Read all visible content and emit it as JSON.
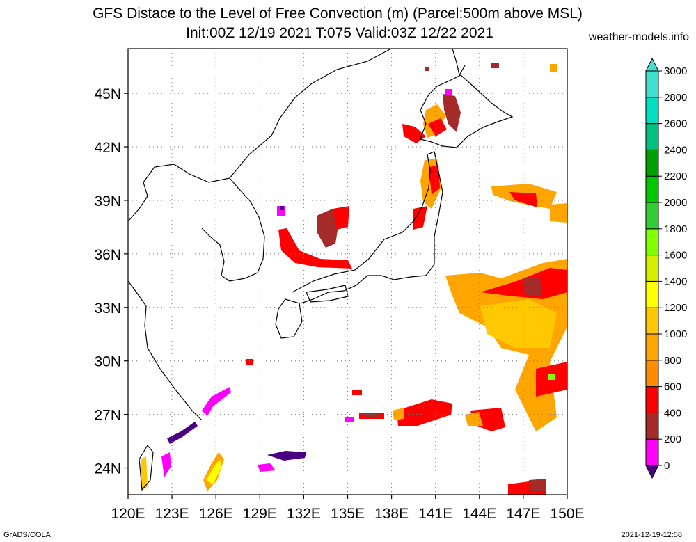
{
  "header": {
    "title_line1": "GFS Distace to the Level of Free Convection (m) (Parcel:500m above MSL)",
    "title_line2": "Init:00Z 12/19 2021 T:075 Valid:03Z 12/22 2021",
    "site": "weather-models.info"
  },
  "map": {
    "lon_range": [
      120,
      150
    ],
    "lat_range": [
      22.5,
      47.5
    ],
    "lat_ticks": [
      "45N",
      "42N",
      "39N",
      "36N",
      "33N",
      "30N",
      "27N",
      "24N"
    ],
    "lat_values": [
      45,
      42,
      39,
      36,
      33,
      30,
      27,
      24
    ],
    "lon_ticks": [
      "120E",
      "123E",
      "126E",
      "129E",
      "132E",
      "135E",
      "138E",
      "141E",
      "144E",
      "147E",
      "150E"
    ],
    "lon_values": [
      120,
      123,
      126,
      129,
      132,
      135,
      138,
      141,
      144,
      147,
      150
    ],
    "grid": "dotted"
  },
  "colorbar": {
    "labels": [
      "0",
      "200",
      "400",
      "600",
      "800",
      "1000",
      "1200",
      "1400",
      "1600",
      "1800",
      "2000",
      "2200",
      "2400",
      "2600",
      "2800",
      "3000"
    ],
    "colors": [
      "#4b0082",
      "#ff00ff",
      "#a52a2a",
      "#ff0000",
      "#ff8c00",
      "#ffa500",
      "#ffc800",
      "#ffff00",
      "#d4f000",
      "#7fff00",
      "#32cd32",
      "#00c800",
      "#00a000",
      "#00c080",
      "#00e0c0",
      "#40e0d0"
    ]
  },
  "footer": {
    "left": "GrADS/COLA",
    "right": "2021-12-19-12:58"
  }
}
